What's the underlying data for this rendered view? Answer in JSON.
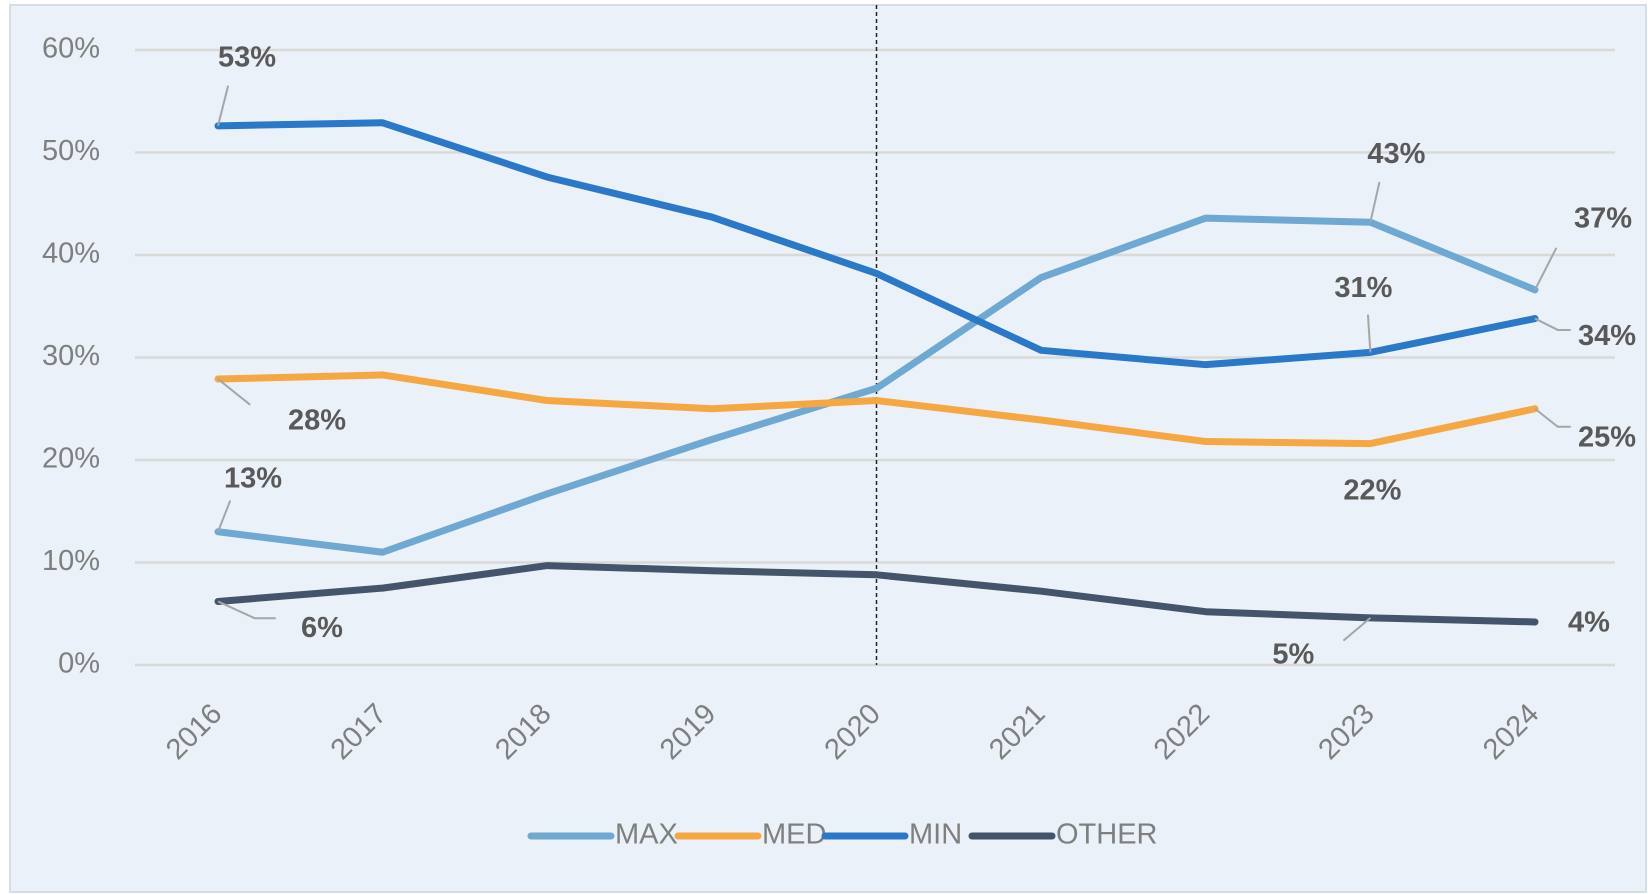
{
  "chart_data": {
    "type": "line",
    "categories": [
      "2016",
      "2017",
      "2018",
      "2019",
      "2020",
      "2021",
      "2022",
      "2023",
      "2024"
    ],
    "series": [
      {
        "name": "MAX",
        "color": "#6fa8d0",
        "values": [
          13.0,
          11.0,
          16.7,
          22.0,
          27.0,
          37.8,
          43.6,
          43.2,
          36.6
        ],
        "value_labels": [
          "13%",
          null,
          null,
          null,
          null,
          null,
          null,
          "43%",
          "37%"
        ]
      },
      {
        "name": "MED",
        "color": "#f5a742",
        "values": [
          27.9,
          28.3,
          25.8,
          25.0,
          25.8,
          23.9,
          21.8,
          21.6,
          25.0
        ],
        "value_labels": [
          "28%",
          null,
          null,
          null,
          null,
          null,
          null,
          "22%",
          "25%"
        ]
      },
      {
        "name": "MIN",
        "color": "#2a78c8",
        "values": [
          52.6,
          52.9,
          47.6,
          43.7,
          38.2,
          30.7,
          29.3,
          30.5,
          33.8
        ],
        "value_labels": [
          "53%",
          null,
          null,
          null,
          null,
          null,
          null,
          "31%",
          "34%"
        ]
      },
      {
        "name": "OTHER",
        "color": "#44546a",
        "values": [
          6.2,
          7.5,
          9.7,
          9.2,
          8.8,
          7.2,
          5.2,
          4.6,
          4.2
        ],
        "value_labels": [
          "6%",
          null,
          null,
          null,
          null,
          null,
          null,
          "5%",
          "4%"
        ]
      }
    ],
    "ylim": [
      0,
      60
    ],
    "yticks": [
      {
        "value": 0,
        "label": "0%"
      },
      {
        "value": 10,
        "label": "10%"
      },
      {
        "value": 20,
        "label": "20%"
      },
      {
        "value": 30,
        "label": "30%"
      },
      {
        "value": 40,
        "label": "40%"
      },
      {
        "value": 50,
        "label": "50%"
      },
      {
        "value": 60,
        "label": "60%"
      }
    ],
    "grid": true,
    "legend": "bottom",
    "vline_category": "2020"
  }
}
